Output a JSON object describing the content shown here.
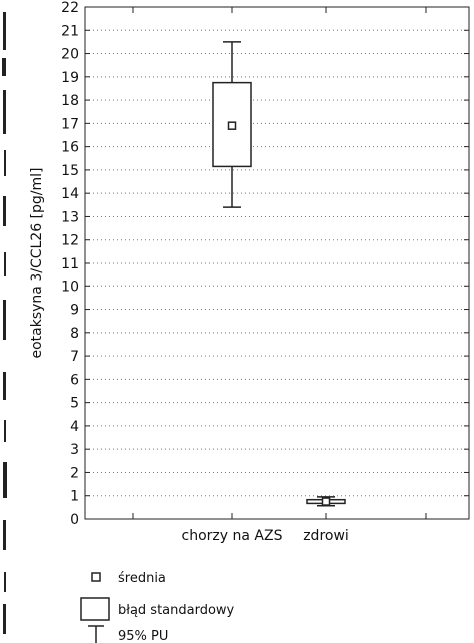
{
  "chart_data": {
    "type": "box",
    "ylabel": "eotaksyna 3/CCL26 [pg/ml]",
    "ylim": [
      0,
      22
    ],
    "yticks": [
      0,
      1,
      2,
      3,
      4,
      5,
      6,
      7,
      8,
      9,
      10,
      11,
      12,
      13,
      14,
      15,
      16,
      17,
      18,
      19,
      20,
      21,
      22
    ],
    "grid": "horizontal dotted",
    "categories": [
      "chorzy na AZS",
      "zdrowi"
    ],
    "boxes": [
      {
        "category": "chorzy na AZS",
        "mean": 16.9,
        "se_low": 15.15,
        "se_high": 18.75,
        "ci_low": 13.4,
        "ci_high": 20.5
      },
      {
        "category": "zdrowi",
        "mean": 0.75,
        "se_low": 0.67,
        "se_high": 0.83,
        "ci_low": 0.57,
        "ci_high": 0.95
      }
    ],
    "legend": {
      "placement": "bottom-left",
      "items": [
        {
          "symbol": "mean-square",
          "label": "średnia"
        },
        {
          "symbol": "box",
          "label": "błąd standardowy"
        },
        {
          "symbol": "whisker",
          "label": "95% PU"
        }
      ]
    }
  }
}
